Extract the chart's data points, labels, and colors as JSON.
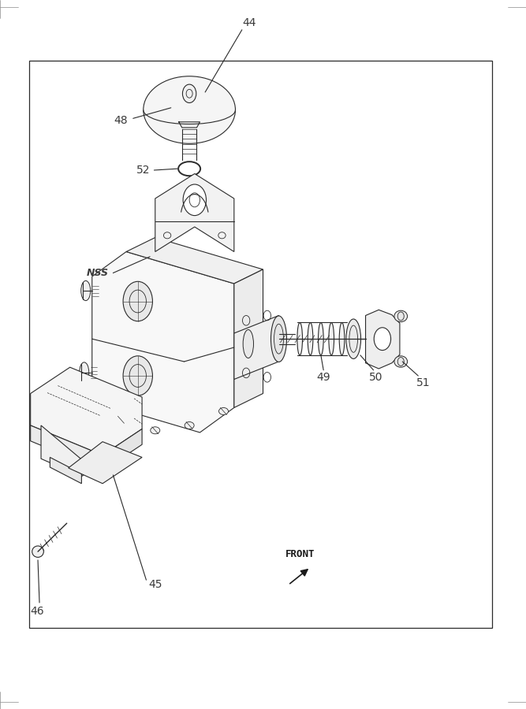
{
  "bg_color": "#ffffff",
  "line_color": "#2a2a2a",
  "label_color": "#3a3a3a",
  "fig_width": 6.67,
  "fig_height": 9.0,
  "dpi": 100
}
